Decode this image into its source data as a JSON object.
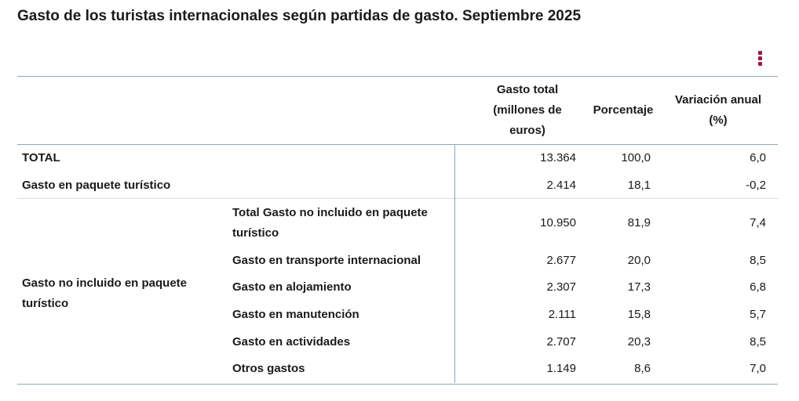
{
  "title": "Gasto de los turistas internacionales según partidas de gasto. Septiembre 2025",
  "menu_icon": "vertical-ellipsis-icon",
  "accent_color": "#9b1b3f",
  "table": {
    "headers": {
      "gasto_total": "Gasto total (millones de euros)",
      "porcentaje": "Porcentaje",
      "variacion": "Variación anual (%)"
    },
    "rows": [
      {
        "label": "TOTAL",
        "gasto": "13.364",
        "porcentaje": "100,0",
        "variacion": "6,0"
      },
      {
        "label": "Gasto en paquete turístico",
        "gasto": "2.414",
        "porcentaje": "18,1",
        "variacion": "-0,2"
      }
    ],
    "group": {
      "label": "Gasto no incluido en paquete turístico",
      "rows": [
        {
          "label": "Total Gasto no incluido en paquete turístico",
          "gasto": "10.950",
          "porcentaje": "81,9",
          "variacion": "7,4"
        },
        {
          "label": "Gasto en transporte internacional",
          "gasto": "2.677",
          "porcentaje": "20,0",
          "variacion": "8,5"
        },
        {
          "label": "Gasto en alojamiento",
          "gasto": "2.307",
          "porcentaje": "17,3",
          "variacion": "6,8"
        },
        {
          "label": "Gasto en manutención",
          "gasto": "2.111",
          "porcentaje": "15,8",
          "variacion": "5,7"
        },
        {
          "label": "Gasto en actividades",
          "gasto": "2.707",
          "porcentaje": "20,3",
          "variacion": "8,5"
        },
        {
          "label": "Otros gastos",
          "gasto": "1.149",
          "porcentaje": "8,6",
          "variacion": "7,0"
        }
      ]
    }
  }
}
